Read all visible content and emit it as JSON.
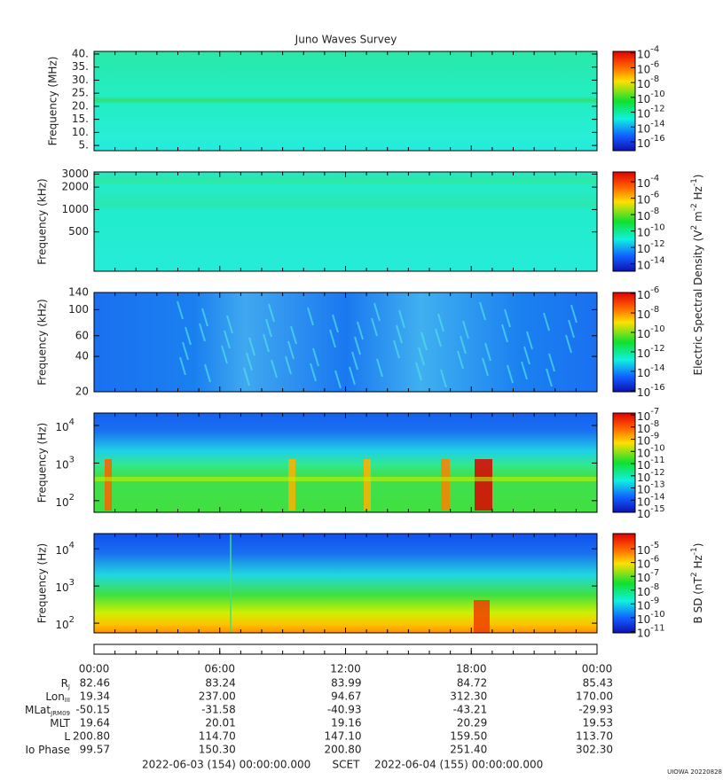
{
  "chart_data": [
    {
      "type": "spectrogram",
      "title": "Juno Waves Survey",
      "ylabel": "Frequency (MHz)",
      "log": false,
      "ylim": [
        3,
        41
      ],
      "yticks": [
        {
          "value": 5,
          "label": "5."
        },
        {
          "value": 10,
          "label": "10."
        },
        {
          "value": 15,
          "label": "15."
        },
        {
          "value": 20,
          "label": "20."
        },
        {
          "value": 25,
          "label": "25."
        },
        {
          "value": 30,
          "label": "30."
        },
        {
          "value": 35,
          "label": "35."
        },
        {
          "value": 40,
          "label": "40."
        }
      ],
      "clim": [
        -17.2,
        -3.8
      ],
      "cticks": [
        -4,
        -6,
        -8,
        -10,
        -12,
        -14,
        -16
      ]
    },
    {
      "type": "spectrogram",
      "ylabel": "Frequency (kHz)",
      "log": true,
      "ylim": [
        148,
        3200
      ],
      "yticks": [
        500,
        1000,
        2000,
        3000
      ],
      "clim": [
        -14.9,
        -2.8
      ],
      "cticks": [
        -4,
        -6,
        -8,
        -10,
        -12,
        -14
      ]
    },
    {
      "type": "spectrogram",
      "ylabel": "Frequency (kHz)",
      "log": true,
      "ylim": [
        20,
        140
      ],
      "yticks": [
        20,
        40,
        60,
        100,
        140
      ],
      "clim": [
        -16.1,
        -5.9
      ],
      "cticks": [
        -6,
        -8,
        -10,
        -12,
        -14,
        -16
      ]
    },
    {
      "type": "spectrogram",
      "ylabel": "Frequency (Hz)",
      "log": false,
      "ylim": [
        1.69,
        4.33
      ],
      "yticks": [
        2,
        3,
        4
      ],
      "tick_base": "10",
      "clim": [
        -15,
        -6.85
      ],
      "cticks": [
        -7,
        -8,
        -9,
        -10,
        -11,
        -12,
        -13,
        -14,
        -15
      ]
    },
    {
      "type": "spectrogram",
      "ylabel": "Frequency (Hz)",
      "log": false,
      "ylim": [
        1.74,
        4.41
      ],
      "yticks": [
        2,
        3,
        4
      ],
      "tick_base": "10",
      "clim": [
        -11.1,
        -3.9
      ],
      "cticks": [
        -5,
        -6,
        -7,
        -8,
        -9,
        -10,
        -11
      ]
    }
  ],
  "colorbar_base": "10",
  "electric_label": [
    {
      "text": "Electric Spectral Density (V",
      "sup": false
    },
    {
      "text": "2",
      "sup": true
    },
    {
      "text": " m",
      "sup": false
    },
    {
      "text": "-2",
      "sup": true
    },
    {
      "text": " Hz",
      "sup": false
    },
    {
      "text": "-1",
      "sup": true
    },
    {
      "text": ")",
      "sup": false
    }
  ],
  "magnetic_label": [
    {
      "text": "B SD (nT",
      "sup": false
    },
    {
      "text": "2",
      "sup": true
    },
    {
      "text": " Hz",
      "sup": false
    },
    {
      "text": "-1",
      "sup": true
    },
    {
      "text": ")",
      "sup": false
    }
  ],
  "time_axis": {
    "xlim": [
      0,
      24
    ],
    "xticks": [
      {
        "value": 0,
        "label": "00:00"
      },
      {
        "value": 6,
        "label": "06:00"
      },
      {
        "value": 12,
        "label": "12:00"
      },
      {
        "value": 18,
        "label": "18:00"
      },
      {
        "value": 24,
        "label": "00:00"
      }
    ]
  },
  "ephemeris": [
    {
      "label": "R",
      "sub": "J",
      "values": [
        "82.46",
        "83.24",
        "83.99",
        "84.72",
        "85.43"
      ]
    },
    {
      "label": "Lon",
      "sub": "III",
      "values": [
        "19.34",
        "237.00",
        "94.67",
        "312.30",
        "170.00"
      ]
    },
    {
      "label": "MLat",
      "sub": "JRM09",
      "values": [
        "-50.15",
        "-31.58",
        "-40.93",
        "-43.21",
        "-29.93"
      ]
    },
    {
      "label": "MLT",
      "values": [
        "19.64",
        "20.01",
        "19.16",
        "20.29",
        "19.53"
      ]
    },
    {
      "label": "L",
      "values": [
        "200.80",
        "114.70",
        "147.10",
        "159.50",
        "113.70"
      ]
    },
    {
      "label": "Io Phase",
      "values": [
        "99.57",
        "150.30",
        "200.80",
        "251.40",
        "302.30"
      ]
    }
  ],
  "footer": {
    "start": "2022-06-03 (154) 00:00:00.000",
    "center": "SCET",
    "end": "2022-06-04 (155) 00:00:00.000",
    "credit": "UIOWA 20220828"
  }
}
